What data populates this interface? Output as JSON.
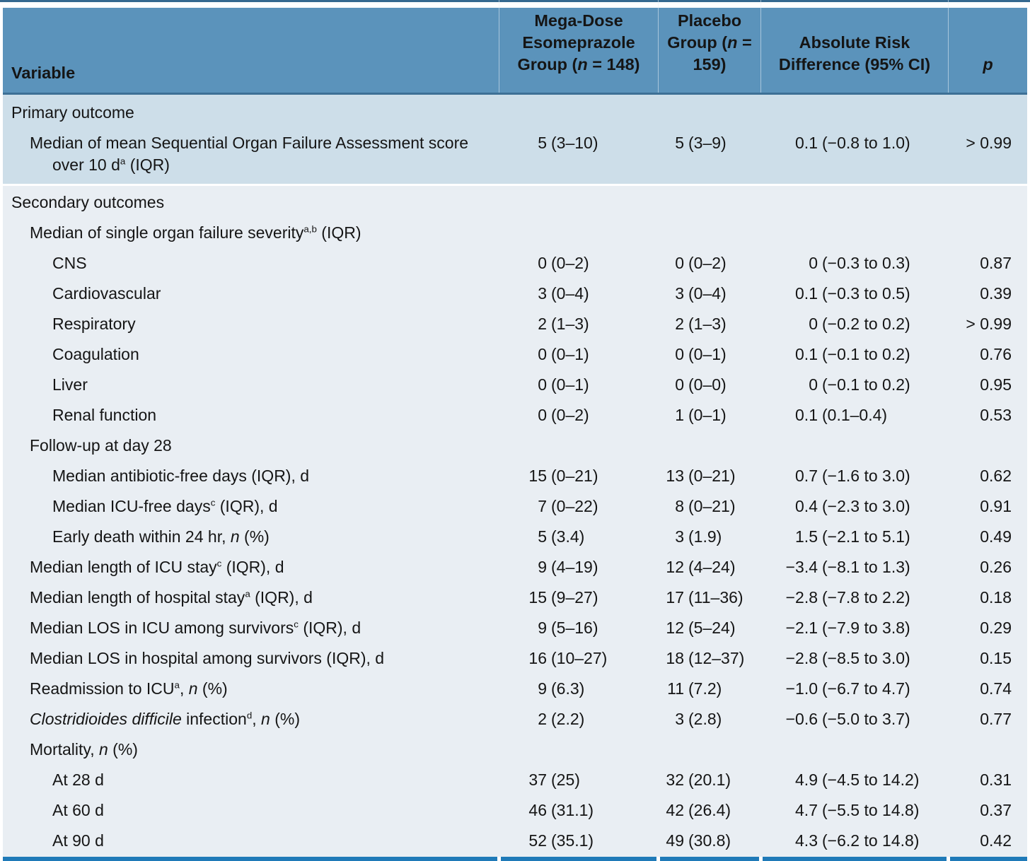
{
  "colors": {
    "header_bg": "#5b93bb",
    "header_underline": "#3d7096",
    "rule_top": "#34688f",
    "rule_bottom": "#1f7ab8",
    "primary_bg": "#cddee9",
    "secondary_bg": "#e9eef3",
    "text": "#151515"
  },
  "header": {
    "columns": [
      {
        "label": "Variable"
      },
      {
        "label": "Mega-Dose Esomeprazole Group (<i>n</i> = 148)"
      },
      {
        "label": "Placebo Group (<i>n</i> = 159)"
      },
      {
        "label": "Absolute Risk Difference (95% CI)"
      },
      {
        "label": "<i>p</i>"
      }
    ]
  },
  "sections": [
    {
      "id": "primary-outcome",
      "rows": [
        {
          "label": "Primary outcome",
          "indent": 0
        },
        {
          "label": "Median of mean Sequential Organ Failure Assessment score over 10 d<sup>a</sup> (IQR)",
          "indent": 1,
          "hang": true,
          "v1": [
            "5",
            "(3–10)"
          ],
          "v2": [
            "5",
            "(3–9)"
          ],
          "v3": [
            "0.1",
            "(−0.8 to 1.0)"
          ],
          "p": "> 0.99"
        }
      ]
    },
    {
      "id": "secondary-outcomes",
      "rows": [
        {
          "label": "Secondary outcomes",
          "indent": 0
        },
        {
          "label": "Median of single organ failure severity<sup>a,b</sup> (IQR)",
          "indent": 1
        },
        {
          "label": "CNS",
          "indent": 2,
          "v1": [
            "0",
            "(0–2)"
          ],
          "v2": [
            "0",
            "(0–2)"
          ],
          "v3": [
            "0",
            "(−0.3 to 0.3)"
          ],
          "p": "0.87"
        },
        {
          "label": "Cardiovascular",
          "indent": 2,
          "v1": [
            "3",
            "(0–4)"
          ],
          "v2": [
            "3",
            "(0–4)"
          ],
          "v3": [
            "0.1",
            "(−0.3 to 0.5)"
          ],
          "p": "0.39"
        },
        {
          "label": "Respiratory",
          "indent": 2,
          "v1": [
            "2",
            "(1–3)"
          ],
          "v2": [
            "2",
            "(1–3)"
          ],
          "v3": [
            "0",
            "(−0.2 to 0.2)"
          ],
          "p": "> 0.99"
        },
        {
          "label": "Coagulation",
          "indent": 2,
          "v1": [
            "0",
            "(0–1)"
          ],
          "v2": [
            "0",
            "(0–1)"
          ],
          "v3": [
            "0.1",
            "(−0.1 to 0.2)"
          ],
          "p": "0.76"
        },
        {
          "label": "Liver",
          "indent": 2,
          "v1": [
            "0",
            "(0–1)"
          ],
          "v2": [
            "0",
            "(0–0)"
          ],
          "v3": [
            "0",
            "(−0.1 to 0.2)"
          ],
          "p": "0.95"
        },
        {
          "label": "Renal function",
          "indent": 2,
          "v1": [
            "0",
            "(0–2)"
          ],
          "v2": [
            "1",
            "(0–1)"
          ],
          "v3": [
            "0.1",
            "(0.1–0.4)"
          ],
          "p": "0.53"
        },
        {
          "label": "Follow-up at day 28",
          "indent": 1
        },
        {
          "label": "Median antibiotic-free days (IQR), d",
          "indent": 2,
          "v1": [
            "15",
            "(0–21)"
          ],
          "v2": [
            "13",
            "(0–21)"
          ],
          "v3": [
            "0.7",
            "(−1.6 to 3.0)"
          ],
          "p": "0.62"
        },
        {
          "label": "Median ICU-free days<sup>c</sup> (IQR), d",
          "indent": 2,
          "v1": [
            "7",
            "(0–22)"
          ],
          "v2": [
            "8",
            "(0–21)"
          ],
          "v3": [
            "0.4",
            "(−2.3 to 3.0)"
          ],
          "p": "0.91"
        },
        {
          "label": "Early death within 24 hr, <i>n</i> (%)",
          "indent": 2,
          "v1": [
            "5",
            "(3.4)"
          ],
          "v2": [
            "3",
            "(1.9)"
          ],
          "v3": [
            "1.5",
            "(−2.1 to 5.1)"
          ],
          "p": "0.49"
        },
        {
          "label": "Median length of ICU stay<sup>c</sup> (IQR), d",
          "indent": 1,
          "v1": [
            "9",
            "(4–19)"
          ],
          "v2": [
            "12",
            "(4–24)"
          ],
          "v3": [
            "−3.4",
            "(−8.1 to 1.3)"
          ],
          "p": "0.26"
        },
        {
          "label": "Median length of hospital stay<sup>a</sup> (IQR), d",
          "indent": 1,
          "v1": [
            "15",
            "(9–27)"
          ],
          "v2": [
            "17",
            "(11–36)"
          ],
          "v3": [
            "−2.8",
            "(−7.8 to 2.2)"
          ],
          "p": "0.18"
        },
        {
          "label": "Median LOS in ICU among survivors<sup>c</sup> (IQR), d",
          "indent": 1,
          "v1": [
            "9",
            "(5–16)"
          ],
          "v2": [
            "12",
            "(5–24)"
          ],
          "v3": [
            "−2.1",
            "(−7.9 to 3.8)"
          ],
          "p": "0.29"
        },
        {
          "label": "Median LOS in hospital among survivors (IQR), d",
          "indent": 1,
          "v1": [
            "16",
            "(10–27)"
          ],
          "v2": [
            "18",
            "(12–37)"
          ],
          "v3": [
            "−2.8",
            "(−8.5 to 3.0)"
          ],
          "p": "0.15"
        },
        {
          "label": "Readmission to ICU<sup>a</sup>, <i>n</i> (%)",
          "indent": 1,
          "v1": [
            "9",
            "(6.3)"
          ],
          "v2": [
            "11",
            "(7.2)"
          ],
          "v3": [
            "−1.0",
            "(−6.7 to 4.7)"
          ],
          "p": "0.74"
        },
        {
          "label": "<i>Clostridioides difficile</i> infection<sup>d</sup>, <i>n</i> (%)",
          "indent": 1,
          "v1": [
            "2",
            "(2.2)"
          ],
          "v2": [
            "3",
            "(2.8)"
          ],
          "v3": [
            "−0.6",
            "(−5.0 to 3.7)"
          ],
          "p": "0.77"
        },
        {
          "label": "Mortality, <i>n</i> (%)",
          "indent": 1
        },
        {
          "label": "At 28 d",
          "indent": 2,
          "v1": [
            "37",
            "(25)"
          ],
          "v2": [
            "32",
            "(20.1)"
          ],
          "v3": [
            "4.9",
            "(−4.5 to 14.2)"
          ],
          "p": "0.31"
        },
        {
          "label": "At 60 d",
          "indent": 2,
          "v1": [
            "46",
            "(31.1)"
          ],
          "v2": [
            "42",
            "(26.4)"
          ],
          "v3": [
            "4.7",
            "(−5.5 to 14.8)"
          ],
          "p": "0.37"
        },
        {
          "label": "At 90 d",
          "indent": 2,
          "v1": [
            "52",
            "(35.1)"
          ],
          "v2": [
            "49",
            "(30.8)"
          ],
          "v3": [
            "4.3",
            "(−6.2 to 14.8)"
          ],
          "p": "0.42"
        }
      ]
    }
  ]
}
